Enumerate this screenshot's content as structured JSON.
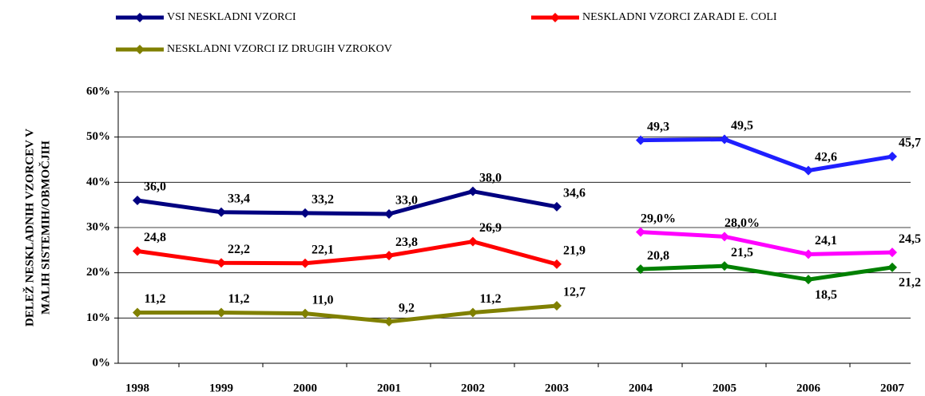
{
  "chart_data": {
    "type": "line",
    "ylabel": [
      "DELEŽ NESKLADNIH VZORCEV V",
      "MALIH SISTEMIH/OBMOČJIH"
    ],
    "categories": [
      "1998",
      "1999",
      "2000",
      "2001",
      "2002",
      "2003",
      "2004",
      "2005",
      "2006",
      "2007"
    ],
    "break_before": 6,
    "series": [
      {
        "name": "VSI NESKLADNI VZORCI",
        "color": "#000080",
        "color_after_break": "#1f1fff",
        "values": [
          36.0,
          33.4,
          33.2,
          33.0,
          38.0,
          34.6,
          49.3,
          49.5,
          42.6,
          45.7
        ],
        "value_labels": [
          "36,0",
          "33,4",
          "33,2",
          "33,0",
          "38,0",
          "34,6",
          "49,3",
          "49,5",
          "42,6",
          "45,7"
        ]
      },
      {
        "name": "NESKLADNI VZORCI ZARADI E. COLI",
        "color": "#ff0000",
        "color_after_break": "#ff00ff",
        "values": [
          24.8,
          22.2,
          22.1,
          23.8,
          26.9,
          21.9,
          29.0,
          28.0,
          24.1,
          24.5
        ],
        "value_labels": [
          "24,8",
          "22,2",
          "22,1",
          "23,8",
          "26,9",
          "21,9",
          "29,0%",
          "28,0%",
          "24,1",
          "24,5"
        ]
      },
      {
        "name": "NESKLADNI VZORCI IZ DRUGIH VZROKOV",
        "color": "#808000",
        "color_after_break": "#008000",
        "values": [
          11.2,
          11.2,
          11.0,
          9.2,
          11.2,
          12.7,
          20.8,
          21.5,
          18.5,
          21.2
        ],
        "value_labels": [
          "11,2",
          "11,2",
          "11,0",
          "9,2",
          "11,2",
          "12,7",
          "20,8",
          "21,5",
          "18,5",
          "21,2"
        ]
      }
    ],
    "ylim": [
      0,
      60
    ],
    "yticks": [
      {
        "value": 0,
        "label": "0%"
      },
      {
        "value": 10,
        "label": "10%"
      },
      {
        "value": 20,
        "label": "20%"
      },
      {
        "value": 30,
        "label": "30%"
      },
      {
        "value": 40,
        "label": "40%"
      },
      {
        "value": 50,
        "label": "50%"
      },
      {
        "value": 60,
        "label": "60%"
      }
    ],
    "grid": true
  }
}
